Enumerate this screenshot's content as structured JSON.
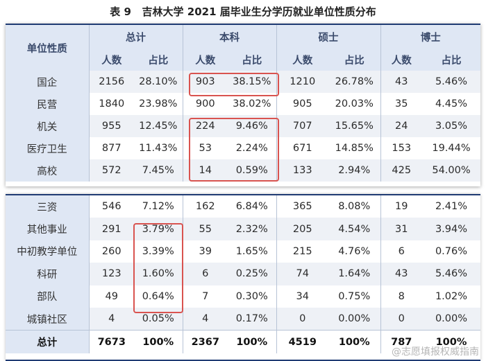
{
  "title": "表 9   吉林大学 2021 届毕业生分学历就业单位性质分布",
  "headers": {
    "unit_type": "单位性质",
    "total": "总计",
    "bachelor": "本科",
    "master": "硕士",
    "doctor": "博士",
    "count": "人数",
    "ratio": "占比"
  },
  "table1": [
    {
      "name": "国企",
      "v": [
        "2156",
        "28.10%",
        "903",
        "38.15%",
        "1210",
        "26.78%",
        "43",
        "5.46%"
      ]
    },
    {
      "name": "民营",
      "v": [
        "1840",
        "23.98%",
        "900",
        "38.02%",
        "905",
        "20.03%",
        "35",
        "4.45%"
      ]
    },
    {
      "name": "机关",
      "v": [
        "955",
        "12.45%",
        "224",
        "9.46%",
        "707",
        "15.65%",
        "24",
        "3.05%"
      ]
    },
    {
      "name": "医疗卫生",
      "v": [
        "877",
        "11.43%",
        "53",
        "2.24%",
        "671",
        "14.85%",
        "153",
        "19.44%"
      ]
    },
    {
      "name": "高校",
      "v": [
        "572",
        "7.45%",
        "14",
        "0.59%",
        "133",
        "2.94%",
        "425",
        "54.00%"
      ]
    }
  ],
  "table2": [
    {
      "name": "三资",
      "v": [
        "546",
        "7.12%",
        "162",
        "6.84%",
        "365",
        "8.08%",
        "19",
        "2.41%"
      ]
    },
    {
      "name": "其他事业",
      "v": [
        "291",
        "3.79%",
        "55",
        "2.32%",
        "205",
        "4.54%",
        "31",
        "3.94%"
      ]
    },
    {
      "name": "中初教学单位",
      "v": [
        "260",
        "3.39%",
        "39",
        "1.65%",
        "215",
        "4.76%",
        "6",
        "0.76%"
      ]
    },
    {
      "name": "科研",
      "v": [
        "123",
        "1.60%",
        "6",
        "0.25%",
        "74",
        "1.64%",
        "43",
        "5.46%"
      ]
    },
    {
      "name": "部队",
      "v": [
        "49",
        "0.64%",
        "7",
        "0.30%",
        "34",
        "0.75%",
        "8",
        "1.02%"
      ]
    },
    {
      "name": "城镇社区",
      "v": [
        "4",
        "0.05%",
        "4",
        "0.17%",
        "0",
        "0.00%",
        "0",
        "0.00%"
      ]
    }
  ],
  "total_row": {
    "name": "总计",
    "v": [
      "7673",
      "100%",
      "2367",
      "100%",
      "4519",
      "100%",
      "787",
      "100%"
    ]
  },
  "watermark": "@志愿填报权威指南",
  "colors": {
    "header_bg": "#dfe7f4",
    "highlight": "#d9534f",
    "border": "#1f3b73"
  }
}
